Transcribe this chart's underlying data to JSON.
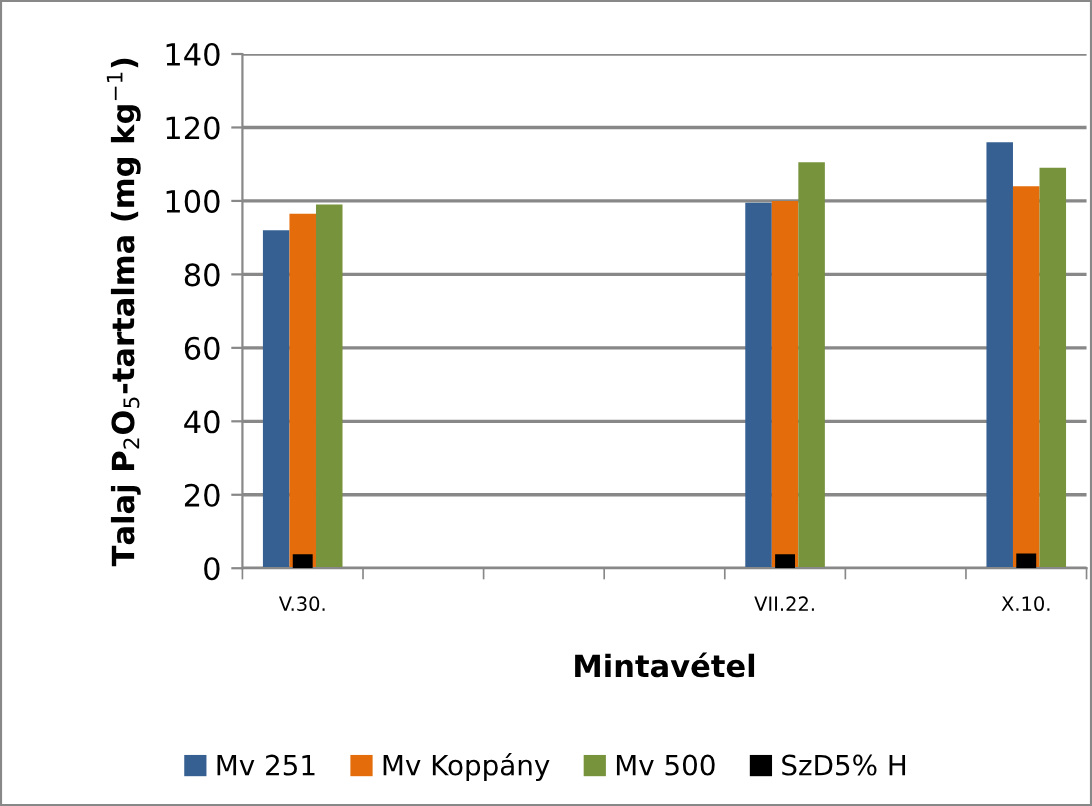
{
  "chart_data": {
    "type": "bar",
    "xlabel": "Mintavétel",
    "ylabel": "Talaj P$_{2}$O$_{5}$-tartalma (mg kg$^{−1}$)",
    "categories": [
      "V.30.",
      null,
      null,
      null,
      "VII.22.",
      null,
      "X.10."
    ],
    "series": [
      {
        "name": "Mv 251",
        "color": "#376092",
        "values": [
          92,
          null,
          null,
          null,
          99.5,
          null,
          116
        ]
      },
      {
        "name": "Mv Koppány",
        "color": "#e46c0a",
        "values": [
          96.5,
          null,
          null,
          null,
          100,
          null,
          104
        ]
      },
      {
        "name": "Mv 500",
        "color": "#77933c",
        "values": [
          99,
          null,
          null,
          null,
          110.5,
          null,
          109
        ]
      },
      {
        "name": "SzD5% H",
        "color": "#000000",
        "values": [
          3.8,
          null,
          null,
          null,
          3.8,
          null,
          4
        ]
      }
    ],
    "ylim": [
      0,
      140
    ],
    "yticks": [
      0,
      20,
      40,
      60,
      80,
      100,
      120,
      140
    ],
    "grid": "y",
    "legend": "bottom"
  }
}
